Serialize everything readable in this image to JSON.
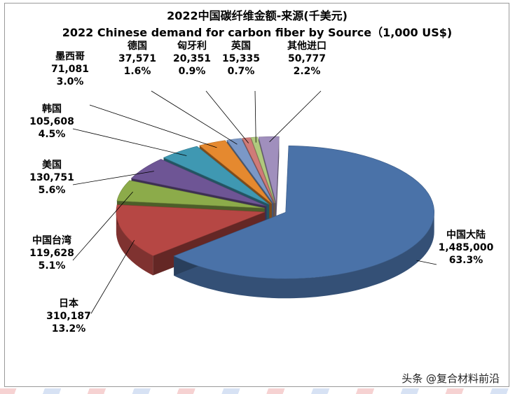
{
  "chart_data": {
    "type": "pie",
    "title": "2022中国碳纤维金额-来源(千美元)",
    "subtitle": "2022 Chinese demand for carbon fiber by Source（1,000 US$)",
    "slices": [
      {
        "label": "中国大陆",
        "value": "1,485,000",
        "percent": "63.3%",
        "pct": 63.3,
        "color": "#4a72a8"
      },
      {
        "label": "日本",
        "value": "310,187",
        "percent": "13.2%",
        "pct": 13.2,
        "color": "#b64744"
      },
      {
        "label": "中国台湾",
        "value": "119,628",
        "percent": "5.1%",
        "pct": 5.1,
        "color": "#8cab4a"
      },
      {
        "label": "美国",
        "value": "130,751",
        "percent": "5.6%",
        "pct": 5.6,
        "color": "#6e5595"
      },
      {
        "label": "韩国",
        "value": "105,608",
        "percent": "4.5%",
        "pct": 4.5,
        "color": "#3f98b2"
      },
      {
        "label": "墨西哥",
        "value": "71,081",
        "percent": "3.0%",
        "pct": 3.0,
        "color": "#e5892f"
      },
      {
        "label": "德国",
        "value": "37,571",
        "percent": "1.6%",
        "pct": 1.6,
        "color": "#7b98c7"
      },
      {
        "label": "匈牙利",
        "value": "20,351",
        "percent": "0.9%",
        "pct": 0.9,
        "color": "#cf7b78"
      },
      {
        "label": "英国",
        "value": "15,335",
        "percent": "0.7%",
        "pct": 0.7,
        "color": "#b0c97e"
      },
      {
        "label": "其他进口",
        "value": "50,777",
        "percent": "2.2%",
        "pct": 2.2,
        "color": "#a08fbd"
      }
    ],
    "legend": "none"
  },
  "watermark": "头条 @复合材料前沿"
}
